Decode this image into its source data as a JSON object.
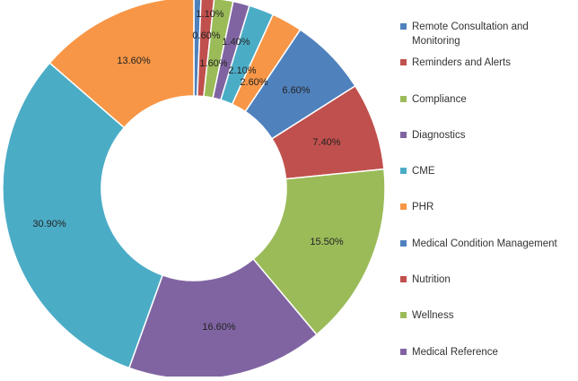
{
  "chart_data": {
    "type": "pie",
    "style": "donut",
    "legend_position": "right",
    "slices": [
      {
        "label": "Remote Consultation and Monitoring",
        "value": 0.6,
        "display": "0.60%",
        "color": "#4f81bd"
      },
      {
        "label": "Reminders and Alerts",
        "value": 1.1,
        "display": "1.10%",
        "color": "#c0504d"
      },
      {
        "label": "Compliance",
        "value": 1.6,
        "display": "1.60%",
        "color": "#9bbb59"
      },
      {
        "label": "Diagnostics",
        "value": 1.4,
        "display": "1.40%",
        "color": "#8064a2"
      },
      {
        "label": "CME",
        "value": 2.1,
        "display": "2.10%",
        "color": "#4bacc6"
      },
      {
        "label": "PHR",
        "value": 2.6,
        "display": "2.60%",
        "color": "#f79646"
      },
      {
        "label": "Medical Condition Management",
        "value": 6.6,
        "display": "6.60%",
        "color": "#4f81bd"
      },
      {
        "label": "Nutrition",
        "value": 7.4,
        "display": "7.40%",
        "color": "#c0504d"
      },
      {
        "label": "Wellness",
        "value": 15.5,
        "display": "15.50%",
        "color": "#9bbb59"
      },
      {
        "label": "Medical Reference",
        "value": 16.6,
        "display": "16.60%",
        "color": "#8064a2"
      },
      {
        "label": "",
        "value": 30.9,
        "display": "30.90%",
        "color": "#4bacc6"
      },
      {
        "label": "",
        "value": 13.6,
        "display": "13.60%",
        "color": "#f79646"
      }
    ]
  }
}
